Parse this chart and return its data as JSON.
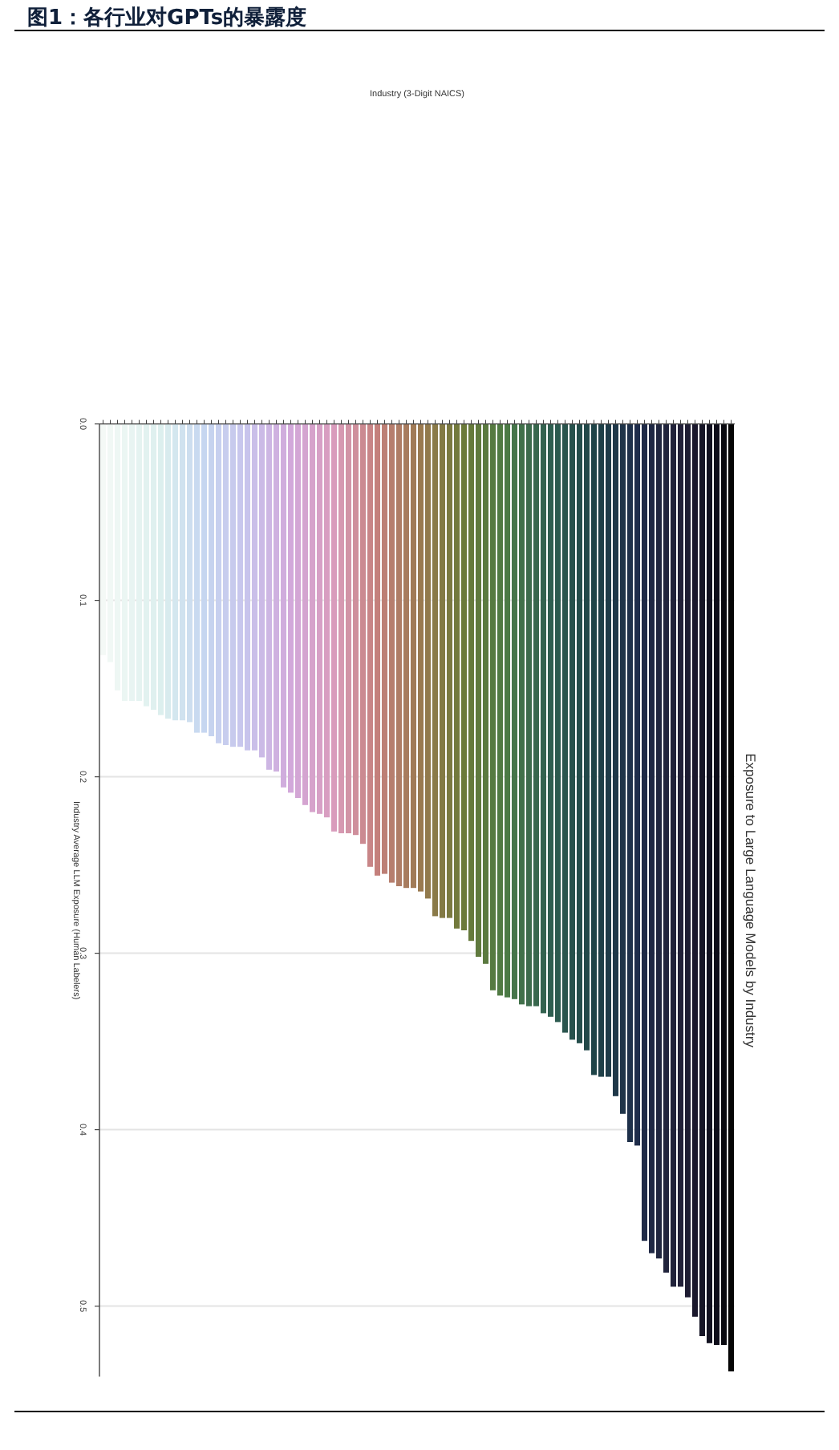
{
  "chart_data": {
    "type": "bar",
    "title": "图1：各行业对GPTs的暴露度",
    "subtitle": "Exposure to Large Language Models by Industry",
    "annotations": [
      "Industry (3-Digit NAICS)"
    ],
    "ylabel": "Industry Average LLM Exposure (Human Labelers)",
    "categories": [
      null,
      null,
      null,
      null,
      null,
      null,
      null,
      null,
      null,
      null,
      null,
      null,
      null,
      null,
      null,
      null,
      null,
      null,
      null,
      null,
      null,
      null,
      null,
      null,
      null,
      null,
      null,
      null,
      null,
      null,
      null,
      null,
      null,
      null,
      null,
      null,
      null,
      null,
      null,
      null,
      null,
      null,
      null,
      null,
      null,
      null,
      null,
      null,
      null,
      null,
      null,
      null,
      null,
      null,
      null,
      null,
      null,
      null,
      null,
      null,
      null,
      null,
      null,
      null,
      null,
      null,
      null,
      null,
      null,
      null,
      null,
      null,
      null,
      null,
      null,
      null,
      null,
      null,
      null,
      null,
      null,
      null,
      null,
      null,
      null,
      null,
      null,
      null
    ],
    "values": [
      0.131,
      0.135,
      0.151,
      0.157,
      0.157,
      0.157,
      0.16,
      0.162,
      0.165,
      0.167,
      0.168,
      0.168,
      0.169,
      0.175,
      0.175,
      0.177,
      0.181,
      0.182,
      0.183,
      0.183,
      0.185,
      0.185,
      0.189,
      0.196,
      0.197,
      0.206,
      0.209,
      0.212,
      0.216,
      0.22,
      0.221,
      0.223,
      0.231,
      0.232,
      0.232,
      0.233,
      0.238,
      0.251,
      0.256,
      0.255,
      0.26,
      0.262,
      0.263,
      0.263,
      0.265,
      0.269,
      0.279,
      0.28,
      0.28,
      0.286,
      0.287,
      0.293,
      0.302,
      0.306,
      0.321,
      0.324,
      0.325,
      0.326,
      0.329,
      0.33,
      0.33,
      0.334,
      0.336,
      0.339,
      0.345,
      0.349,
      0.351,
      0.355,
      0.369,
      0.37,
      0.37,
      0.381,
      0.391,
      0.407,
      0.409,
      0.463,
      0.47,
      0.473,
      0.481,
      0.489,
      0.489,
      0.495,
      0.506,
      0.517,
      0.521,
      0.522,
      0.522,
      0.537
    ],
    "colors": [
      "#f4f9f6",
      "#f1f8f5",
      "#eef7f4",
      "#ebf6f3",
      "#e8f4f2",
      "#e5f3f1",
      "#e2f2f0",
      "#dff0ef",
      "#dcefee",
      "#d8ebee",
      "#d4e7ef",
      "#d0e2ef",
      "#cddeef",
      "#c9daf0",
      "#c6d6f0",
      "#c6d3ef",
      "#c7d0ef",
      "#c7cdee",
      "#c7caed",
      "#c8c7ed",
      "#c8c4ec",
      "#cabfe9",
      "#cbbae6",
      "#cdb6e3",
      "#cfb1e0",
      "#d0addd",
      "#d2a8da",
      "#d3a6d5",
      "#d4a4d0",
      "#d6a2cb",
      "#d7a0c6",
      "#d89ec1",
      "#d99cbc",
      "#d699b1",
      "#d294a6",
      "#cf8f9c",
      "#cb8a91",
      "#c88587",
      "#c4807c",
      "#bd7f75",
      "#b67e6e",
      "#af7d66",
      "#a87c5f",
      "#a17b57",
      "#9a7a50",
      "#927a4c",
      "#8a7a48",
      "#837a45",
      "#7b7a41",
      "#737a3d",
      "#6b7a3a",
      "#667a3c",
      "#607a3e",
      "#5b7a40",
      "#567a41",
      "#507a43",
      "#4b7a45",
      "#46754a",
      "#41704a",
      "#3d6b4c",
      "#38674d",
      "#34624f",
      "#2f5e50",
      "#2c5a4f",
      "#2a554e",
      "#27514c",
      "#244d4b",
      "#224849",
      "#1f4448",
      "#1f4048",
      "#1f3c49",
      "#1f3849",
      "#1f3449",
      "#1e304a",
      "#1e2c4a",
      "#1f2a47",
      "#1f2844",
      "#20263f",
      "#21243c",
      "#21223a",
      "#222038",
      "#1e1c32",
      "#1a182c",
      "#161526",
      "#121120",
      "#0e0d1a",
      "#0a0a10",
      "#050505"
    ],
    "ylim": [
      0.54,
      0
    ],
    "yticks": [
      {
        "value": 0,
        "label": "0.0"
      },
      0.1,
      0.2,
      0.3,
      0.4,
      0.5
    ],
    "grid": "y"
  }
}
